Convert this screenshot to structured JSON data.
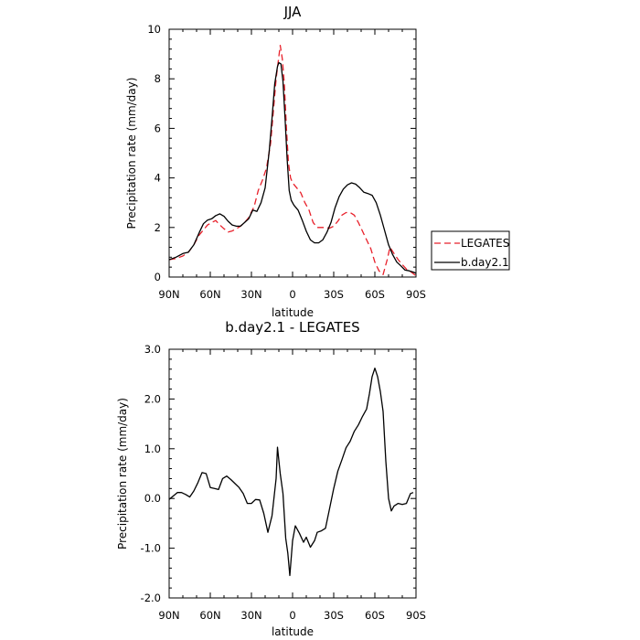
{
  "chart_data": [
    {
      "type": "line",
      "title": "JJA",
      "xlabel": "latitude",
      "ylabel": "Precipitation rate (mm/day)",
      "xlim": [
        90,
        -90
      ],
      "ylim": [
        0,
        10
      ],
      "x_ticks": [
        {
          "value": 90,
          "label": "90N"
        },
        {
          "value": 60,
          "label": "60N"
        },
        {
          "value": 30,
          "label": "30N"
        },
        {
          "value": 0,
          "label": "0"
        },
        {
          "value": -30,
          "label": "30S"
        },
        {
          "value": -60,
          "label": "60S"
        },
        {
          "value": -90,
          "label": "90S"
        }
      ],
      "y_ticks": [
        {
          "value": 0,
          "label": "0"
        },
        {
          "value": 2,
          "label": "2"
        },
        {
          "value": 4,
          "label": "4"
        },
        {
          "value": 6,
          "label": "6"
        },
        {
          "value": 8,
          "label": "8"
        },
        {
          "value": 10,
          "label": "10"
        }
      ],
      "grid": false,
      "legend": {
        "position": "outside-right"
      },
      "series": [
        {
          "name": "LEGATES",
          "color": "#e8202a",
          "dash": "dashed",
          "points": [
            [
              90,
              0.7
            ],
            [
              85,
              0.75
            ],
            [
              80,
              0.85
            ],
            [
              76,
              1.0
            ],
            [
              72,
              1.3
            ],
            [
              68,
              1.7
            ],
            [
              65,
              1.9
            ],
            [
              62,
              2.1
            ],
            [
              59,
              2.2
            ],
            [
              56,
              2.28
            ],
            [
              53,
              2.1
            ],
            [
              50,
              1.95
            ],
            [
              47,
              1.82
            ],
            [
              44,
              1.86
            ],
            [
              41,
              1.95
            ],
            [
              38,
              2.05
            ],
            [
              35,
              2.2
            ],
            [
              32,
              2.4
            ],
            [
              28,
              2.85
            ],
            [
              25,
              3.5
            ],
            [
              22,
              3.9
            ],
            [
              19,
              4.4
            ],
            [
              16,
              5.4
            ],
            [
              14,
              6.7
            ],
            [
              12,
              8.0
            ],
            [
              10,
              8.9
            ],
            [
              9,
              9.35
            ],
            [
              7.5,
              8.8
            ],
            [
              6,
              7.8
            ],
            [
              4.5,
              6.0
            ],
            [
              3,
              4.6
            ],
            [
              1.5,
              4.0
            ],
            [
              0,
              3.8
            ],
            [
              -3,
              3.6
            ],
            [
              -6,
              3.4
            ],
            [
              -9,
              3.0
            ],
            [
              -12,
              2.7
            ],
            [
              -15,
              2.2
            ],
            [
              -18,
              2.0
            ],
            [
              -21,
              2.0
            ],
            [
              -24,
              2.0
            ],
            [
              -27,
              1.97
            ],
            [
              -30,
              2.05
            ],
            [
              -33,
              2.25
            ],
            [
              -36,
              2.5
            ],
            [
              -39,
              2.6
            ],
            [
              -42,
              2.6
            ],
            [
              -45,
              2.5
            ],
            [
              -48,
              2.2
            ],
            [
              -51,
              1.85
            ],
            [
              -54,
              1.5
            ],
            [
              -57,
              1.15
            ],
            [
              -60,
              0.6
            ],
            [
              -63,
              0.25
            ],
            [
              -66,
              0.1
            ],
            [
              -69,
              0.7
            ],
            [
              -71,
              1.2
            ],
            [
              -74,
              0.95
            ],
            [
              -77,
              0.7
            ],
            [
              -80,
              0.5
            ],
            [
              -83,
              0.32
            ],
            [
              -86,
              0.22
            ],
            [
              -90,
              0.05
            ]
          ]
        },
        {
          "name": "b.day2.1",
          "color": "#000000",
          "dash": "solid",
          "points": [
            [
              90,
              0.7
            ],
            [
              85,
              0.8
            ],
            [
              80,
              0.95
            ],
            [
              76,
              1.0
            ],
            [
              72,
              1.3
            ],
            [
              68,
              1.8
            ],
            [
              65,
              2.15
            ],
            [
              62,
              2.3
            ],
            [
              59,
              2.35
            ],
            [
              56,
              2.48
            ],
            [
              53,
              2.55
            ],
            [
              50,
              2.45
            ],
            [
              47,
              2.25
            ],
            [
              44,
              2.1
            ],
            [
              41,
              2.05
            ],
            [
              38,
              2.05
            ],
            [
              35,
              2.2
            ],
            [
              32,
              2.35
            ],
            [
              29,
              2.7
            ],
            [
              26,
              2.65
            ],
            [
              23,
              3.0
            ],
            [
              20,
              3.6
            ],
            [
              17,
              5.1
            ],
            [
              15,
              6.4
            ],
            [
              13,
              7.8
            ],
            [
              11,
              8.5
            ],
            [
              10,
              8.65
            ],
            [
              8.5,
              8.6
            ],
            [
              7,
              7.9
            ],
            [
              5.5,
              6.4
            ],
            [
              4,
              4.8
            ],
            [
              2.5,
              3.5
            ],
            [
              1,
              3.1
            ],
            [
              -1,
              2.9
            ],
            [
              -4,
              2.7
            ],
            [
              -7,
              2.3
            ],
            [
              -10,
              1.85
            ],
            [
              -13,
              1.5
            ],
            [
              -16,
              1.38
            ],
            [
              -19,
              1.38
            ],
            [
              -22,
              1.5
            ],
            [
              -25,
              1.8
            ],
            [
              -28,
              2.2
            ],
            [
              -31,
              2.8
            ],
            [
              -34,
              3.25
            ],
            [
              -37,
              3.55
            ],
            [
              -40,
              3.72
            ],
            [
              -43,
              3.8
            ],
            [
              -46,
              3.75
            ],
            [
              -49,
              3.6
            ],
            [
              -52,
              3.42
            ],
            [
              -55,
              3.37
            ],
            [
              -58,
              3.3
            ],
            [
              -61,
              3.0
            ],
            [
              -64,
              2.5
            ],
            [
              -67,
              1.9
            ],
            [
              -70,
              1.3
            ],
            [
              -73,
              0.9
            ],
            [
              -76,
              0.6
            ],
            [
              -79,
              0.45
            ],
            [
              -82,
              0.28
            ],
            [
              -85,
              0.25
            ],
            [
              -88,
              0.2
            ],
            [
              -90,
              0.15
            ]
          ]
        }
      ]
    },
    {
      "type": "line",
      "title": "b.day2.1 - LEGATES",
      "xlabel": "latitude",
      "ylabel": "Precipitation rate (mm/day)",
      "xlim": [
        90,
        -90
      ],
      "ylim": [
        -2,
        3
      ],
      "x_ticks": [
        {
          "value": 90,
          "label": "90N"
        },
        {
          "value": 60,
          "label": "60N"
        },
        {
          "value": 30,
          "label": "30N"
        },
        {
          "value": 0,
          "label": "0"
        },
        {
          "value": -30,
          "label": "30S"
        },
        {
          "value": -60,
          "label": "60S"
        },
        {
          "value": -90,
          "label": "90S"
        }
      ],
      "y_ticks": [
        {
          "value": -2,
          "label": "-2.0"
        },
        {
          "value": -1,
          "label": "-1.0"
        },
        {
          "value": 0,
          "label": "0.0"
        },
        {
          "value": 1,
          "label": "1.0"
        },
        {
          "value": 2,
          "label": "2.0"
        },
        {
          "value": 3,
          "label": "3.0"
        }
      ],
      "grid": false,
      "series": [
        {
          "color": "#000000",
          "dash": "solid",
          "points": [
            [
              90,
              -0.02
            ],
            [
              87,
              0.05
            ],
            [
              84,
              0.12
            ],
            [
              81,
              0.12
            ],
            [
              78,
              0.08
            ],
            [
              75,
              0.03
            ],
            [
              72,
              0.15
            ],
            [
              69,
              0.32
            ],
            [
              66,
              0.52
            ],
            [
              63,
              0.5
            ],
            [
              60,
              0.22
            ],
            [
              57,
              0.2
            ],
            [
              54,
              0.18
            ],
            [
              51,
              0.4
            ],
            [
              48,
              0.45
            ],
            [
              45,
              0.38
            ],
            [
              42,
              0.3
            ],
            [
              39,
              0.22
            ],
            [
              36,
              0.1
            ],
            [
              33,
              -0.1
            ],
            [
              30,
              -0.1
            ],
            [
              27,
              -0.02
            ],
            [
              24,
              -0.03
            ],
            [
              21,
              -0.3
            ],
            [
              18,
              -0.68
            ],
            [
              15,
              -0.35
            ],
            [
              12,
              0.4
            ],
            [
              11,
              1.03
            ],
            [
              9,
              0.5
            ],
            [
              7,
              0.1
            ],
            [
              5,
              -0.8
            ],
            [
              3.5,
              -1.1
            ],
            [
              2,
              -1.55
            ],
            [
              0,
              -0.85
            ],
            [
              -2,
              -0.55
            ],
            [
              -5,
              -0.7
            ],
            [
              -8,
              -0.88
            ],
            [
              -10,
              -0.78
            ],
            [
              -13,
              -0.98
            ],
            [
              -16,
              -0.85
            ],
            [
              -18,
              -0.68
            ],
            [
              -21,
              -0.65
            ],
            [
              -24,
              -0.6
            ],
            [
              -27,
              -0.2
            ],
            [
              -30,
              0.2
            ],
            [
              -33,
              0.55
            ],
            [
              -36,
              0.78
            ],
            [
              -39,
              1.02
            ],
            [
              -42,
              1.15
            ],
            [
              -45,
              1.35
            ],
            [
              -48,
              1.48
            ],
            [
              -51,
              1.65
            ],
            [
              -54,
              1.8
            ],
            [
              -56,
              2.1
            ],
            [
              -58,
              2.45
            ],
            [
              -60,
              2.62
            ],
            [
              -62,
              2.45
            ],
            [
              -64,
              2.15
            ],
            [
              -66,
              1.75
            ],
            [
              -68,
              0.75
            ],
            [
              -70,
              0.0
            ],
            [
              -72,
              -0.25
            ],
            [
              -74,
              -0.15
            ],
            [
              -77,
              -0.1
            ],
            [
              -80,
              -0.12
            ],
            [
              -83,
              -0.1
            ],
            [
              -86,
              0.1
            ],
            [
              -88,
              0.12
            ]
          ]
        }
      ]
    }
  ]
}
